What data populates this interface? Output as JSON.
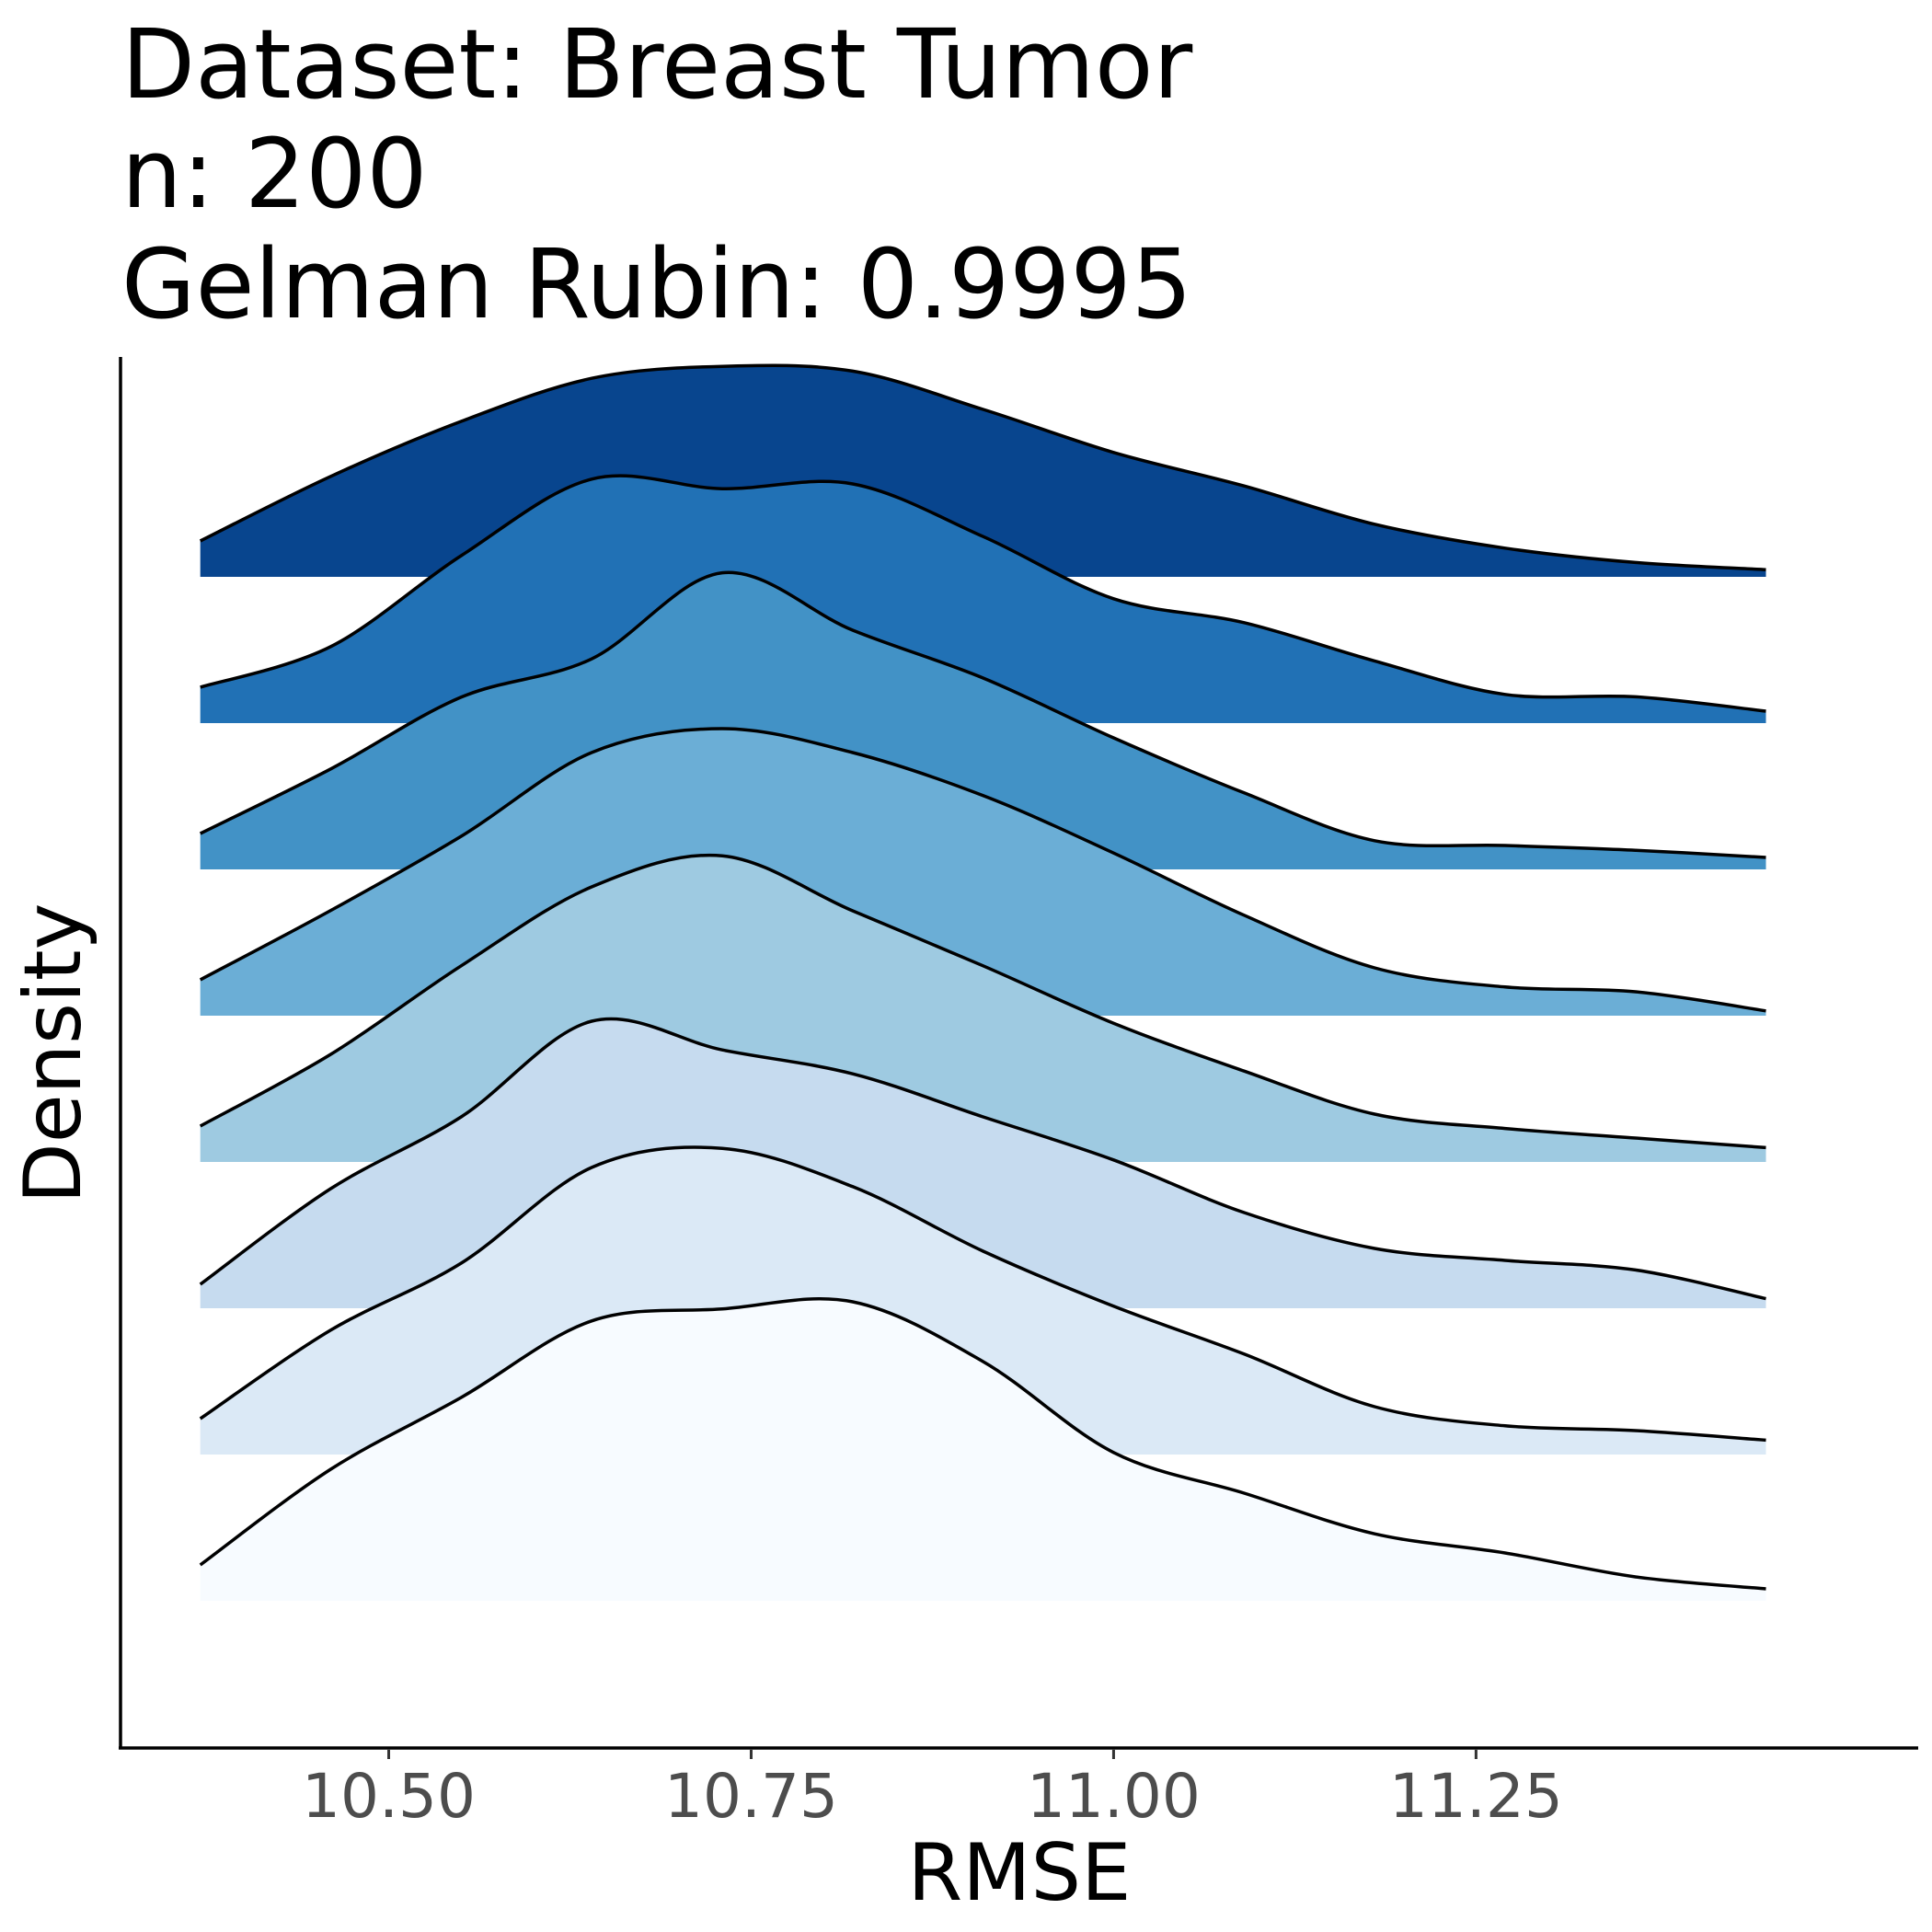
{
  "chart_data": {
    "type": "area",
    "subtype": "ridgeline",
    "title_lines": [
      "Dataset: Breast Tumor",
      "n: 200",
      "Gelman Rubin: 0.9995"
    ],
    "xlabel": "RMSE",
    "ylabel": "Density",
    "xlim": [
      10.315,
      11.555
    ],
    "x_ticks": [
      10.5,
      10.75,
      11.0,
      11.25
    ],
    "x_tick_labels": [
      "10.50",
      "10.75",
      "11.00",
      "11.25"
    ],
    "x_range_data": [
      10.37,
      11.45
    ],
    "grid": false,
    "legend": "none",
    "x": [
      10.37,
      10.46,
      10.55,
      10.64,
      10.73,
      10.82,
      10.91,
      11.0,
      11.09,
      11.18,
      11.27,
      11.36,
      11.45
    ],
    "series": [
      {
        "values": [
          0.15,
          0.42,
          0.65,
          0.83,
          0.88,
          0.86,
          0.7,
          0.52,
          0.38,
          0.22,
          0.12,
          0.06,
          0.03
        ],
        "color": "#08458e"
      },
      {
        "values": [
          0.15,
          0.32,
          0.7,
          1.02,
          0.98,
          1.0,
          0.78,
          0.52,
          0.42,
          0.26,
          0.12,
          0.11,
          0.05
        ],
        "color": "#2171b5"
      },
      {
        "values": [
          0.15,
          0.42,
          0.72,
          0.88,
          1.24,
          1.0,
          0.8,
          0.55,
          0.32,
          0.12,
          0.1,
          0.08,
          0.05
        ],
        "color": "#4292c6"
      },
      {
        "values": [
          0.15,
          0.44,
          0.75,
          1.1,
          1.2,
          1.1,
          0.92,
          0.68,
          0.42,
          0.2,
          0.12,
          0.1,
          0.02
        ],
        "color": "#6baed6"
      },
      {
        "values": [
          0.15,
          0.45,
          0.82,
          1.15,
          1.28,
          1.05,
          0.82,
          0.58,
          0.38,
          0.2,
          0.14,
          0.1,
          0.06
        ],
        "color": "#9ecae1"
      },
      {
        "values": [
          0.1,
          0.5,
          0.8,
          1.2,
          1.08,
          0.98,
          0.8,
          0.62,
          0.4,
          0.25,
          0.2,
          0.16,
          0.04
        ],
        "color": "#c6dbef"
      },
      {
        "values": [
          0.15,
          0.52,
          0.8,
          1.2,
          1.28,
          1.12,
          0.85,
          0.62,
          0.42,
          0.2,
          0.12,
          0.1,
          0.06
        ],
        "color": "#dbe9f6"
      },
      {
        "values": [
          0.15,
          0.55,
          0.85,
          1.17,
          1.22,
          1.25,
          1.0,
          0.62,
          0.45,
          0.28,
          0.2,
          0.1,
          0.05
        ],
        "color": "#f7fbff"
      }
    ]
  },
  "ticks": [
    "10.50",
    "10.75",
    "11.00",
    "11.25"
  ]
}
